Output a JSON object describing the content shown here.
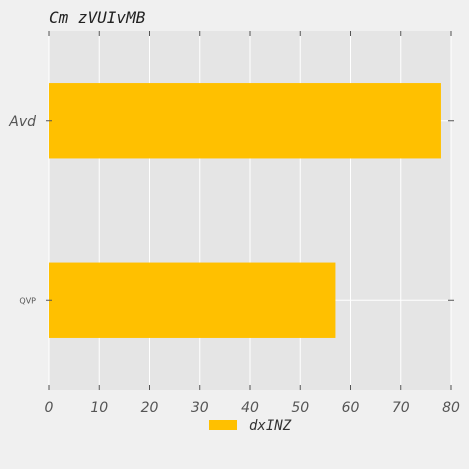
{
  "chart_data": {
    "type": "bar",
    "orientation": "horizontal",
    "title": "Cm zVUIvMB",
    "xlabel": "",
    "ylabel": "",
    "categories": [
      "Avd",
      "QVP"
    ],
    "series": [
      {
        "name": "dxINZ",
        "values": [
          78,
          57
        ],
        "color": "#ffc000"
      }
    ],
    "xlim": [
      0,
      80
    ],
    "xticks": [
      0,
      10,
      20,
      30,
      40,
      50,
      60,
      70,
      80
    ],
    "grid": true,
    "legend_position": "bottom-center",
    "plot_background": "#e5e5e5",
    "grid_color": "#ffffff"
  }
}
